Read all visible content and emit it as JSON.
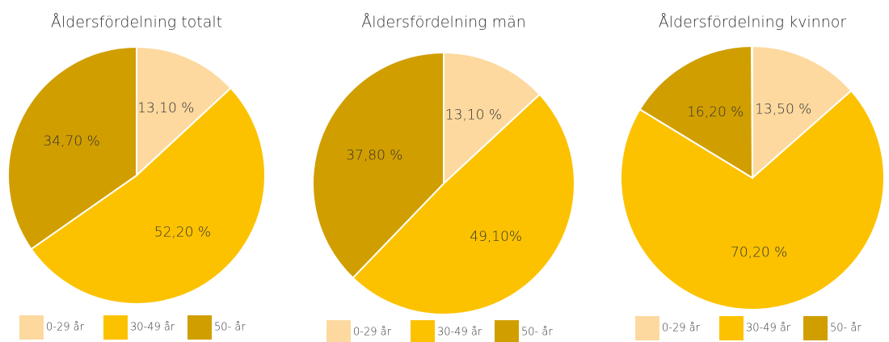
{
  "chart_data": [
    {
      "type": "pie",
      "title": "Åldersfördelning totalt",
      "categories": [
        "0-29 år",
        "30-49 år",
        "50- år"
      ],
      "values": [
        13.1,
        52.2,
        34.7
      ],
      "value_labels": [
        "13,10 %",
        "52,20 %",
        "34,70 %"
      ],
      "colors": [
        "#fdd99f",
        "#fcc200",
        "#d19e00"
      ]
    },
    {
      "type": "pie",
      "title": "Åldersfördelning män",
      "categories": [
        "0-29 år",
        "30-49 år",
        "50- år"
      ],
      "values": [
        13.1,
        49.1,
        37.8
      ],
      "value_labels": [
        "13,10 %",
        "49,10%",
        "37,80 %"
      ],
      "colors": [
        "#fdd99f",
        "#fcc200",
        "#d19e00"
      ]
    },
    {
      "type": "pie",
      "title": "Åldersfördelning kvinnor",
      "categories": [
        "0-29 år",
        "30-49 år",
        "50- år"
      ],
      "values": [
        13.5,
        70.2,
        16.2
      ],
      "value_labels": [
        "13,50 %",
        "70,20 %",
        "16,20 %"
      ],
      "colors": [
        "#fdd99f",
        "#fcc200",
        "#d19e00"
      ]
    }
  ]
}
